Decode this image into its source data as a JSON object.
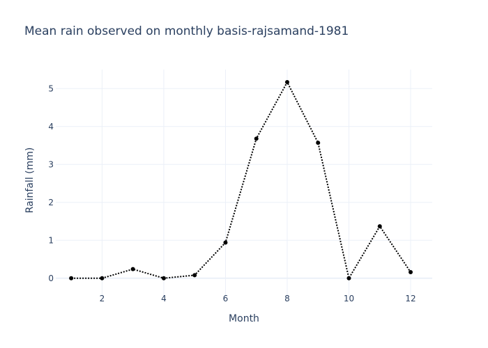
{
  "chart_data": {
    "type": "line",
    "title": "Mean rain observed on monthly basis-rajsamand-1981",
    "xlabel": "Month",
    "ylabel": "Rainfall (mm)",
    "xlim": [
      0.5,
      12.7
    ],
    "ylim": [
      -0.5,
      5.5
    ],
    "x_ticks": [
      2,
      4,
      6,
      8,
      10,
      12
    ],
    "y_ticks": [
      0,
      1,
      2,
      3,
      4,
      5
    ],
    "grid": true,
    "legend": "none",
    "series": [
      {
        "line_style": "dotted",
        "markers": true,
        "color": "#000000",
        "x": [
          1,
          2,
          3,
          4,
          5,
          6,
          7,
          8,
          9,
          10,
          11,
          12
        ],
        "y": [
          0.0,
          0.0,
          0.24,
          0.0,
          0.08,
          0.94,
          3.68,
          5.17,
          3.57,
          0.0,
          1.37,
          0.16
        ]
      }
    ]
  }
}
